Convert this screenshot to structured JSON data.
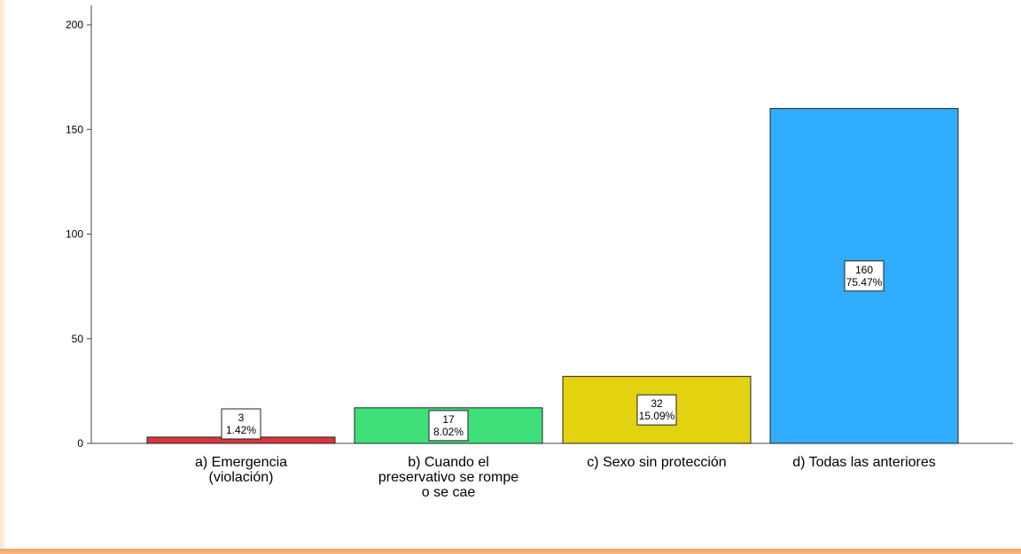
{
  "chart_data": {
    "type": "bar",
    "title": "",
    "xlabel": "",
    "ylabel": "",
    "ylim": [
      0,
      210
    ],
    "yticks": [
      0,
      50,
      100,
      150,
      200
    ],
    "grid": false,
    "categories": [
      [
        "a) Emergencia",
        "(violación)"
      ],
      [
        "b) Cuando el",
        "preservativo se rompe",
        "o se cae"
      ],
      [
        "c) Sexo sin protección"
      ],
      [
        "d) Todas las anteriores"
      ]
    ],
    "values": [
      3,
      17,
      32,
      160
    ],
    "percent_labels": [
      "1.42%",
      "8.02%",
      "15.09%",
      "75.47%"
    ],
    "colors": [
      "#d9363e",
      "#3fe07a",
      "#e3d210",
      "#31adff"
    ]
  }
}
